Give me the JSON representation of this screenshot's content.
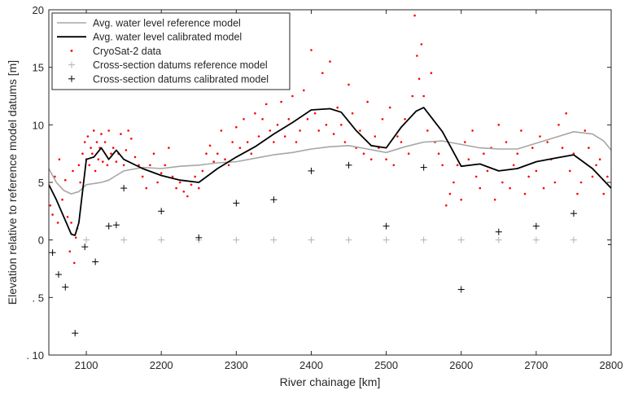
{
  "chart_data": {
    "type": "line",
    "title": "",
    "xlabel": "River chainage [km]",
    "ylabel": "Elevation relative to reference model datums [m]",
    "xlim": [
      2050,
      2800
    ],
    "ylim": [
      -10,
      20
    ],
    "x_ticks": [
      2100,
      2200,
      2300,
      2400,
      2500,
      2600,
      2700,
      2800
    ],
    "y_ticks": [
      -10,
      -5,
      0,
      5,
      10,
      15,
      20
    ],
    "x_tick_labels": [
      "2100",
      "2200",
      "2300",
      "2400",
      "2500",
      "2600",
      "2700",
      "2800"
    ],
    "y_tick_labels": [
      ". 10",
      ". 5",
      "0",
      "5",
      "10",
      "15",
      "20"
    ],
    "grid": false,
    "legend_position": "top-left",
    "series": [
      {
        "name": "Avg. water level reference model",
        "kind": "line",
        "color": "#a6a6a6",
        "x": [
          2050,
          2060,
          2070,
          2080,
          2090,
          2100,
          2110,
          2120,
          2130,
          2140,
          2150,
          2175,
          2200,
          2225,
          2250,
          2275,
          2300,
          2325,
          2350,
          2375,
          2400,
          2425,
          2450,
          2475,
          2500,
          2525,
          2550,
          2575,
          2600,
          2625,
          2650,
          2675,
          2700,
          2725,
          2750,
          2775,
          2790,
          2800
        ],
        "y": [
          6.2,
          5.0,
          4.3,
          4.0,
          4.2,
          4.8,
          4.9,
          5.0,
          5.2,
          5.6,
          6.0,
          6.3,
          6.2,
          6.4,
          6.5,
          6.7,
          6.8,
          7.1,
          7.4,
          7.6,
          7.9,
          8.1,
          8.2,
          7.9,
          7.6,
          8.1,
          8.5,
          8.6,
          8.3,
          8.0,
          7.9,
          7.9,
          8.4,
          8.9,
          9.4,
          9.2,
          8.6,
          7.8
        ]
      },
      {
        "name": "Avg. water level calibrated model",
        "kind": "line",
        "color": "#000000",
        "x": [
          2050,
          2060,
          2070,
          2080,
          2085,
          2090,
          2100,
          2110,
          2120,
          2130,
          2140,
          2150,
          2175,
          2200,
          2225,
          2250,
          2275,
          2300,
          2325,
          2350,
          2375,
          2400,
          2425,
          2440,
          2460,
          2480,
          2500,
          2520,
          2540,
          2550,
          2575,
          2600,
          2625,
          2650,
          2675,
          2700,
          2725,
          2750,
          2775,
          2800
        ],
        "y": [
          4.8,
          3.5,
          2.0,
          0.5,
          0.4,
          1.5,
          7.0,
          7.2,
          8.0,
          7.0,
          7.8,
          7.0,
          6.2,
          5.6,
          5.2,
          5.0,
          6.2,
          7.2,
          8.1,
          9.2,
          10.2,
          11.3,
          11.4,
          11.1,
          9.5,
          8.2,
          8.0,
          9.8,
          11.2,
          11.5,
          9.4,
          6.4,
          6.6,
          6.0,
          6.2,
          6.8,
          7.1,
          7.4,
          6.2,
          4.5
        ]
      },
      {
        "name": "CryoSat-2 data",
        "kind": "scatter",
        "marker": "dot",
        "color": "#ff0000",
        "x": [
          2052,
          2055,
          2058,
          2062,
          2064,
          2068,
          2072,
          2075,
          2078,
          2080,
          2082,
          2084,
          2086,
          2088,
          2090,
          2092,
          2095,
          2098,
          2100,
          2102,
          2104,
          2106,
          2108,
          2110,
          2112,
          2114,
          2116,
          2118,
          2120,
          2122,
          2125,
          2128,
          2130,
          2133,
          2136,
          2140,
          2143,
          2146,
          2150,
          2153,
          2156,
          2160,
          2165,
          2170,
          2175,
          2180,
          2185,
          2190,
          2195,
          2200,
          2205,
          2210,
          2215,
          2220,
          2225,
          2230,
          2235,
          2240,
          2245,
          2250,
          2255,
          2260,
          2265,
          2270,
          2275,
          2280,
          2285,
          2290,
          2295,
          2300,
          2305,
          2310,
          2315,
          2320,
          2325,
          2330,
          2335,
          2340,
          2345,
          2350,
          2355,
          2360,
          2365,
          2370,
          2375,
          2380,
          2385,
          2390,
          2395,
          2400,
          2405,
          2410,
          2415,
          2420,
          2425,
          2430,
          2435,
          2440,
          2445,
          2450,
          2455,
          2460,
          2465,
          2470,
          2475,
          2480,
          2485,
          2490,
          2495,
          2500,
          2505,
          2510,
          2515,
          2520,
          2525,
          2530,
          2535,
          2538,
          2541,
          2544,
          2547,
          2550,
          2555,
          2560,
          2565,
          2570,
          2575,
          2580,
          2585,
          2590,
          2595,
          2600,
          2605,
          2610,
          2615,
          2620,
          2625,
          2630,
          2635,
          2640,
          2645,
          2650,
          2655,
          2660,
          2665,
          2670,
          2675,
          2680,
          2685,
          2690,
          2695,
          2700,
          2705,
          2710,
          2715,
          2720,
          2725,
          2730,
          2735,
          2740,
          2745,
          2750,
          2755,
          2760,
          2765,
          2770,
          2775,
          2780,
          2785,
          2790,
          2795
        ],
        "y": [
          3.0,
          2.2,
          5.5,
          1.5,
          7.0,
          3.5,
          5.2,
          2.0,
          -1.0,
          1.5,
          6.0,
          -2.0,
          0.2,
          1.0,
          6.5,
          5.0,
          7.5,
          8.5,
          7.0,
          9.0,
          6.5,
          8.0,
          7.5,
          9.5,
          6.0,
          8.5,
          7.0,
          8.0,
          9.2,
          6.8,
          8.5,
          6.5,
          9.5,
          7.5,
          8.0,
          6.8,
          7.5,
          9.2,
          6.5,
          7.8,
          9.5,
          8.8,
          7.2,
          6.5,
          5.5,
          4.5,
          6.5,
          7.5,
          5.0,
          5.8,
          6.5,
          8.0,
          5.5,
          4.5,
          5.0,
          4.2,
          3.8,
          4.8,
          5.5,
          4.5,
          6.0,
          7.5,
          8.2,
          6.8,
          7.5,
          9.5,
          7.0,
          6.5,
          8.5,
          9.8,
          8.0,
          10.5,
          8.5,
          7.5,
          11.0,
          9.0,
          10.5,
          11.8,
          9.5,
          8.5,
          10.0,
          12.0,
          9.0,
          10.5,
          12.5,
          8.5,
          9.5,
          13.0,
          10.5,
          16.5,
          11.0,
          9.5,
          14.5,
          10.0,
          15.5,
          9.2,
          11.5,
          10.0,
          8.5,
          13.5,
          11.0,
          8.0,
          9.5,
          7.5,
          12.0,
          7.0,
          9.0,
          8.0,
          10.5,
          7.0,
          11.5,
          6.5,
          9.0,
          8.5,
          10.5,
          7.5,
          12.5,
          19.5,
          16.0,
          14.0,
          17.0,
          12.5,
          9.5,
          14.5,
          8.5,
          7.5,
          6.5,
          3.0,
          4.0,
          5.0,
          6.5,
          3.5,
          8.5,
          7.0,
          9.5,
          5.5,
          4.5,
          7.5,
          6.0,
          8.0,
          3.5,
          10.0,
          5.0,
          8.5,
          4.5,
          6.5,
          7.5,
          9.5,
          4.0,
          5.5,
          8.0,
          6.0,
          9.0,
          4.5,
          8.5,
          7.0,
          5.0,
          10.0,
          8.0,
          11.0,
          6.0,
          7.5,
          4.0,
          5.0,
          9.5,
          8.0,
          5.5,
          6.5,
          7.0,
          4.0,
          5.5
        ]
      },
      {
        "name": "Cross-section datums reference model",
        "kind": "scatter",
        "marker": "plus",
        "color": "#b3b3b3",
        "x": [
          2050,
          2100,
          2150,
          2200,
          2250,
          2300,
          2350,
          2400,
          2450,
          2500,
          2550,
          2600,
          2650,
          2700,
          2750,
          2800
        ],
        "y": [
          0,
          0,
          0,
          0,
          0,
          0,
          0,
          0,
          0,
          0,
          0,
          0,
          0,
          0,
          0,
          0
        ]
      },
      {
        "name": "Cross-section datums calibrated model",
        "kind": "scatter",
        "marker": "plus",
        "color": "#000000",
        "x": [
          2055,
          2063,
          2072,
          2085,
          2098,
          2112,
          2130,
          2140,
          2150,
          2200,
          2250,
          2300,
          2350,
          2400,
          2450,
          2500,
          2550,
          2600,
          2650,
          2700,
          2750,
          2800
        ],
        "y": [
          -1.1,
          -3.0,
          -4.1,
          -8.1,
          -0.6,
          -1.9,
          1.2,
          1.3,
          4.5,
          2.5,
          0.2,
          3.2,
          3.5,
          6.0,
          6.5,
          1.2,
          6.3,
          -4.3,
          0.7,
          1.2,
          2.3,
          -0.4
        ]
      }
    ]
  }
}
